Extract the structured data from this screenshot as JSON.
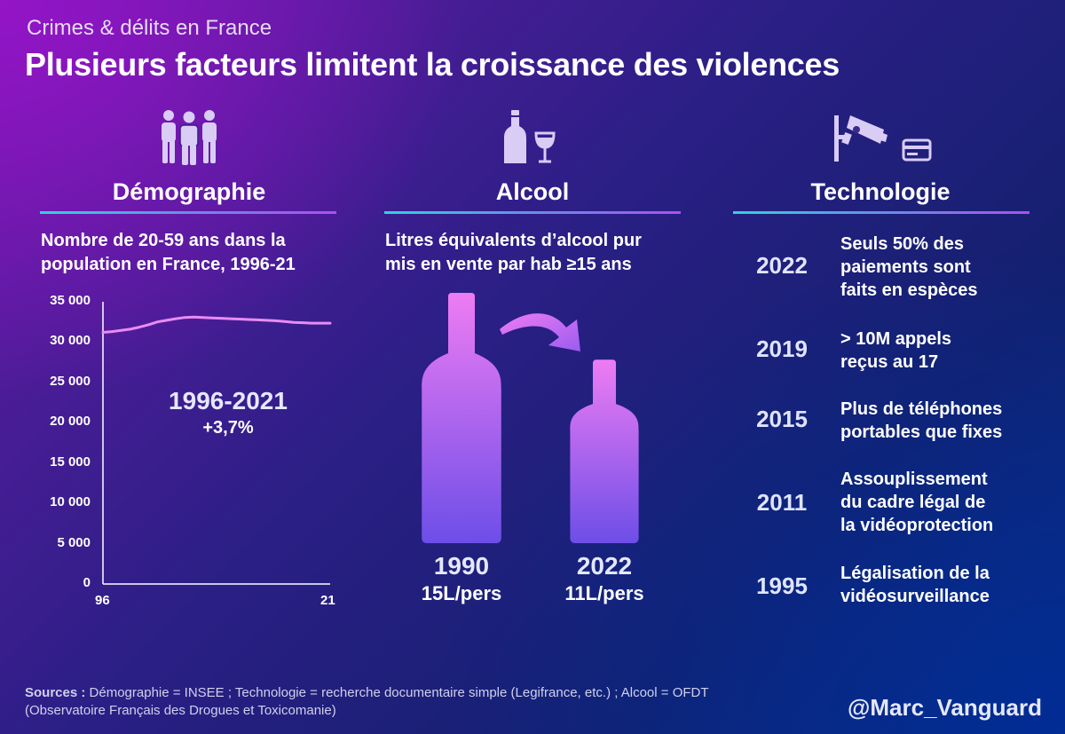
{
  "header": {
    "kicker": "Crimes & délits en France",
    "title": "Plusieurs facteurs limitent la croissance des violences"
  },
  "columns": {
    "demographie": {
      "icon": "people-icon",
      "title": "Démographie",
      "subtitle_line1": "Nombre de 20-59 ans dans la",
      "subtitle_line2": "population en France, 1996-21",
      "annotation_period": "1996-2021",
      "annotation_change": "+3,7%"
    },
    "alcool": {
      "icon": "bottle-wine-glass-icon",
      "title": "Alcool",
      "subtitle_line1": "Litres équivalents d’alcool pur",
      "subtitle_line2": "mis en vente par hab ≥15 ans",
      "bottles": [
        {
          "year": "1990",
          "label": "15L/pers",
          "value": 15
        },
        {
          "year": "2022",
          "label": "11L/pers",
          "value": 11
        }
      ]
    },
    "technologie": {
      "icon": "cctv-camera-card-icon",
      "title": "Technologie",
      "timeline": [
        {
          "year": "2022",
          "line1": "Seuls 50% des",
          "line2": "paiements sont",
          "line3": "faits en espèces"
        },
        {
          "year": "2019",
          "line1": "> 10M appels",
          "line2": "reçus au 17",
          "line3": ""
        },
        {
          "year": "2015",
          "line1": "Plus de téléphones",
          "line2": "portables que fixes",
          "line3": ""
        },
        {
          "year": "2011",
          "line1": "Assouplissement",
          "line2": "du cadre légal de",
          "line3": "la vidéoprotection"
        },
        {
          "year": "1995",
          "line1": "Légalisation de la",
          "line2": "vidéosurveillance",
          "line3": ""
        }
      ]
    }
  },
  "chart_data": [
    {
      "type": "line",
      "title": "Nombre de 20-59 ans dans la population en France, 1996-21",
      "x": [
        1996,
        1997,
        1998,
        1999,
        2000,
        2001,
        2002,
        2003,
        2004,
        2005,
        2006,
        2007,
        2008,
        2009,
        2010,
        2011,
        2012,
        2013,
        2014,
        2015,
        2016,
        2017,
        2018,
        2019,
        2020,
        2021
      ],
      "series": [
        {
          "values": [
            31200,
            31300,
            31450,
            31600,
            31850,
            32150,
            32500,
            32700,
            32900,
            33050,
            33100,
            33050,
            33000,
            32950,
            32900,
            32850,
            32800,
            32750,
            32700,
            32650,
            32550,
            32450,
            32400,
            32350,
            32350,
            32350
          ]
        }
      ],
      "ylim": [
        0,
        35000
      ],
      "yticks": [
        "35 000",
        "30 000",
        "25 000",
        "20 000",
        "15 000",
        "10 000",
        "5 000",
        "0"
      ],
      "xticks": [
        "96",
        "21"
      ],
      "grid": false,
      "line_color": "#e98cf6"
    },
    {
      "type": "bar",
      "categories": [
        "1990",
        "2022"
      ],
      "values": [
        15,
        11
      ],
      "unit": "L/pers"
    }
  ],
  "footer": {
    "sources_label": "Sources :",
    "sources_line1": "Démographie = INSEE ; Technologie = recherche documentaire simple (Legifrance, etc.) ; Alcool = OFDT",
    "sources_line2": "(Observatoire Français des Drogues et Toxicomanie)",
    "handle": "@Marc_Vanguard"
  },
  "colors": {
    "accent_line": "#e98cf6",
    "bottle_top": "#ee7cf3",
    "bottle_bottom": "#6d4ee8",
    "icon": "#d9ccf5"
  }
}
